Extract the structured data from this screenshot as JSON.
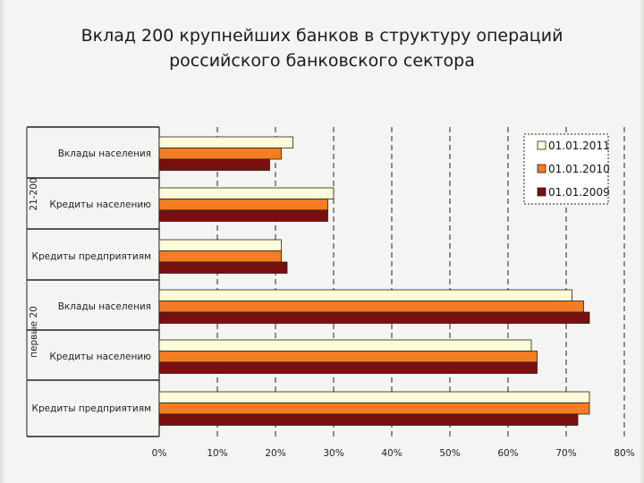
{
  "slide": {
    "title_line1": "Вклад 200 крупнейших банков в структуру операций",
    "title_line2": "российского банковского сектора"
  },
  "chart_data": {
    "type": "bar",
    "orientation": "horizontal",
    "groups": [
      "21-200",
      "первые 20"
    ],
    "categories": [
      {
        "group": "21-200",
        "label": "Вклады населения"
      },
      {
        "group": "21-200",
        "label": "Кредиты населению"
      },
      {
        "group": "21-200",
        "label": "Кредиты предприятиям"
      },
      {
        "group": "первые 20",
        "label": "Вклады населения"
      },
      {
        "group": "первые 20",
        "label": "Кредиты населению"
      },
      {
        "group": "первые 20",
        "label": "Кредиты предприятиям"
      }
    ],
    "series": [
      {
        "name": "01.01.2011",
        "color": "#fdfbd8",
        "values": [
          23,
          30,
          21,
          71,
          64,
          74
        ]
      },
      {
        "name": "01.01.2010",
        "color": "#f47c22",
        "values": [
          21,
          29,
          21,
          73,
          65,
          74
        ]
      },
      {
        "name": "01.01.2009",
        "color": "#7a0f0f",
        "values": [
          19,
          29,
          22,
          74,
          65,
          72
        ]
      }
    ],
    "x_unit": "%",
    "xlim": [
      0,
      80
    ],
    "x_ticks": [
      "0%",
      "10%",
      "20%",
      "30%",
      "40%",
      "50%",
      "60%",
      "70%",
      "80%"
    ],
    "grid": "vertical dashed",
    "legend_position": "top-right"
  }
}
